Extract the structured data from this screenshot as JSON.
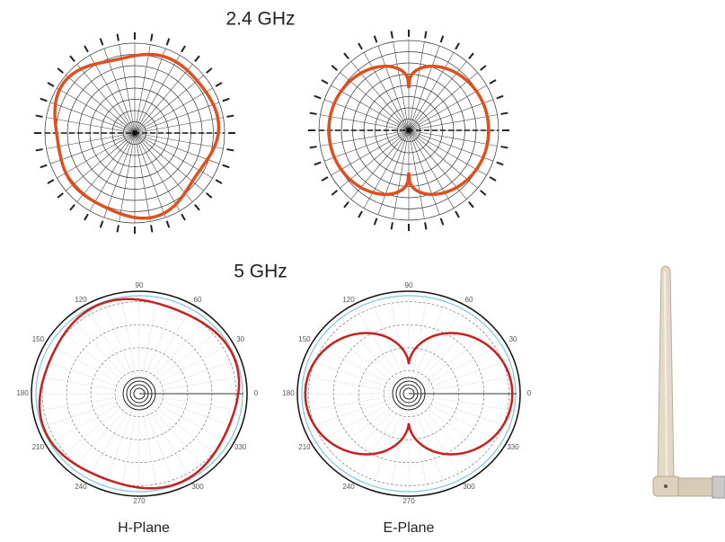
{
  "sections": [
    {
      "title": "2.4 GHz"
    },
    {
      "title": "5 GHz"
    }
  ],
  "plots": [
    {
      "angle_labels": [
        "0",
        "30",
        "60",
        "90",
        "120",
        "150",
        "180",
        "210",
        "240",
        "270",
        "300",
        "330"
      ]
    },
    {
      "angle_labels": [
        "0",
        "30",
        "60",
        "90",
        "120",
        "150",
        "180",
        "210",
        "240",
        "270",
        "300",
        "330"
      ]
    }
  ],
  "captions": [
    "H-Plane",
    "E-Plane"
  ]
}
